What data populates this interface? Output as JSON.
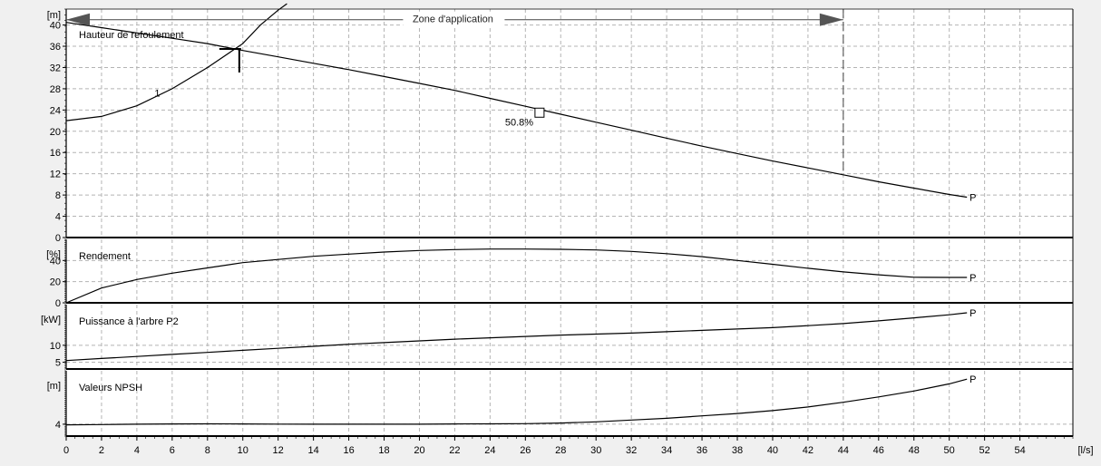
{
  "chart_data": {
    "type": "line",
    "x_axis": {
      "unit": "[l/s]",
      "range": [
        0,
        57
      ],
      "ticks": [
        0,
        2,
        4,
        6,
        8,
        10,
        12,
        14,
        16,
        18,
        20,
        22,
        24,
        26,
        28,
        30,
        32,
        34,
        36,
        38,
        40,
        42,
        44,
        46,
        48,
        50,
        52,
        54
      ]
    },
    "grid": true,
    "panels": [
      {
        "id": "head",
        "title": "Hauteur de refoulement",
        "unit": "[m]",
        "ylim": [
          0,
          43
        ],
        "yticks": [
          0,
          4,
          8,
          12,
          16,
          20,
          24,
          28,
          32,
          36,
          40
        ],
        "series": [
          {
            "name": "P",
            "x": [
              0,
              2,
              4,
              6,
              8,
              10,
              12,
              14,
              16,
              18,
              20,
              22,
              24,
              26,
              28,
              30,
              32,
              34,
              36,
              38,
              40,
              42,
              44,
              46,
              48,
              50,
              51
            ],
            "y": [
              40.5,
              39.5,
              38.5,
              37.5,
              36.5,
              35.2,
              34.0,
              32.8,
              31.6,
              30.3,
              29.0,
              27.7,
              26.2,
              24.7,
              23.2,
              21.7,
              20.2,
              18.7,
              17.2,
              15.8,
              14.4,
              13.1,
              11.8,
              10.5,
              9.3,
              8.1,
              7.6
            ]
          },
          {
            "name": "1",
            "x": [
              0,
              2,
              4,
              6,
              8,
              10,
              11,
              12,
              12.5
            ],
            "y": [
              22.0,
              22.8,
              24.8,
              28.0,
              32.0,
              36.5,
              40.0,
              42.8,
              44.0
            ]
          }
        ],
        "labels": {
          "efficiency_point": {
            "x": 26.8,
            "y": 23.5,
            "text": "50.8%"
          },
          "curve_number": {
            "x": 5,
            "y": 26.5,
            "text": "1"
          },
          "end_label": "P"
        },
        "operating_point": {
          "x": 9.8,
          "y": 35.5
        },
        "application_zone": {
          "label": "Zone d'application",
          "x_start": 0,
          "x_end": 44,
          "y": 41
        }
      },
      {
        "id": "efficiency",
        "title": "Rendement",
        "unit": "[%]",
        "ylim": [
          0,
          60
        ],
        "yticks": [
          0,
          20,
          40
        ],
        "series": [
          {
            "name": "P",
            "x": [
              0,
              2,
              4,
              6,
              8,
              10,
              12,
              14,
              16,
              18,
              20,
              22,
              24,
              26,
              28,
              30,
              32,
              34,
              36,
              38,
              40,
              42,
              44,
              46,
              48,
              50,
              51
            ],
            "y": [
              0,
              14,
              22,
              28,
              33,
              38,
              41,
              44,
              46,
              48,
              49.5,
              50.3,
              50.8,
              50.8,
              50.6,
              50.0,
              48.6,
              46.5,
              43.6,
              40.0,
              36.4,
              32.7,
              29.2,
              26.5,
              24.2,
              24.0,
              24.0
            ]
          }
        ],
        "end_label": "P"
      },
      {
        "id": "power",
        "title": "Puissance à l'arbre P2",
        "unit": "[kW]",
        "ylim": [
          3,
          22
        ],
        "yticks": [
          5,
          10
        ],
        "series": [
          {
            "name": "P",
            "x": [
              0,
              2,
              4,
              6,
              8,
              10,
              12,
              14,
              16,
              18,
              20,
              22,
              24,
              26,
              28,
              30,
              32,
              34,
              36,
              38,
              40,
              42,
              44,
              46,
              48,
              50,
              51
            ],
            "y": [
              5.5,
              6.1,
              6.7,
              7.3,
              7.9,
              8.5,
              9.1,
              9.7,
              10.3,
              10.8,
              11.3,
              11.8,
              12.2,
              12.6,
              13.0,
              13.3,
              13.6,
              14.0,
              14.4,
              14.8,
              15.2,
              15.8,
              16.4,
              17.2,
              18.1,
              19.0,
              19.6
            ]
          }
        ],
        "end_label": "P"
      },
      {
        "id": "npsh",
        "title": "Valeurs NPSH",
        "unit": "[m]",
        "ylim": [
          3,
          8.5
        ],
        "yticks": [
          4
        ],
        "series": [
          {
            "name": "P",
            "x": [
              0,
              2,
              4,
              6,
              8,
              10,
              12,
              14,
              16,
              18,
              20,
              22,
              24,
              26,
              28,
              30,
              32,
              34,
              36,
              38,
              40,
              42,
              44,
              46,
              48,
              50,
              51
            ],
            "y": [
              3.95,
              3.97,
              4.0,
              4.02,
              4.03,
              4.02,
              4.01,
              4.0,
              4.0,
              4.0,
              4.0,
              4.02,
              4.03,
              4.05,
              4.1,
              4.2,
              4.35,
              4.5,
              4.7,
              4.9,
              5.15,
              5.45,
              5.85,
              6.3,
              6.8,
              7.4,
              7.8
            ]
          }
        ],
        "end_label": "P"
      }
    ]
  }
}
